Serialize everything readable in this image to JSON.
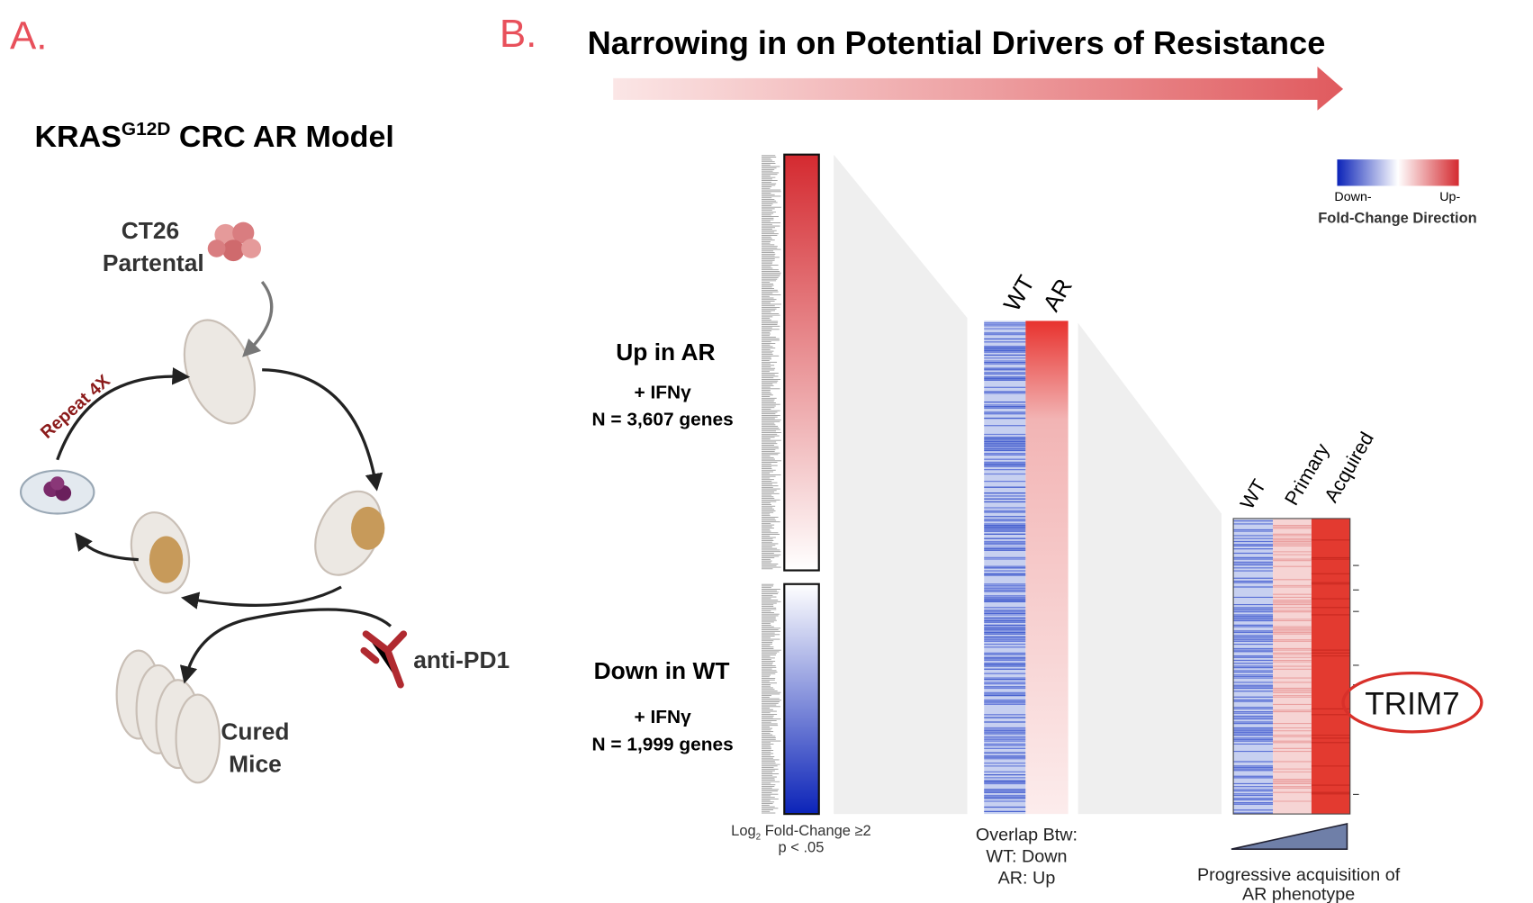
{
  "panel_a": {
    "label": "A.",
    "title": "KRAS",
    "title_sup": "G12D",
    "title_rest": " CRC AR Model",
    "nodes": [
      "CT26",
      "Partental",
      "Repeat 4X",
      "anti-PD1",
      "Cured",
      "Mice"
    ]
  },
  "panel_b": {
    "label": "B.",
    "title": "Narrowing in on Potential Drivers of Resistance",
    "legend": {
      "low": "Down-",
      "high": "Up-",
      "title": "Fold-Change Direction"
    },
    "up_group": {
      "title": "Up in AR",
      "condition": "+ IFNγ",
      "count": "N = 3,607 genes"
    },
    "down_group": {
      "title": "Down in WT",
      "condition": "+ IFNγ",
      "count": "N = 1,999 genes"
    },
    "filter": {
      "log": "Log",
      "sub": "2",
      "rest": " Fold-Change ≥2",
      "p": "p < .05"
    },
    "overlap": {
      "columns": [
        "WT",
        "AR"
      ],
      "caption": [
        "Overlap Btw:",
        "WT: Down",
        "AR: Up"
      ]
    },
    "final": {
      "columns": [
        "WT",
        "Primary",
        "Acquired"
      ],
      "highlight": "TRIM7",
      "caption": [
        "Progressive acquisition of",
        "AR phenotype"
      ]
    }
  }
}
